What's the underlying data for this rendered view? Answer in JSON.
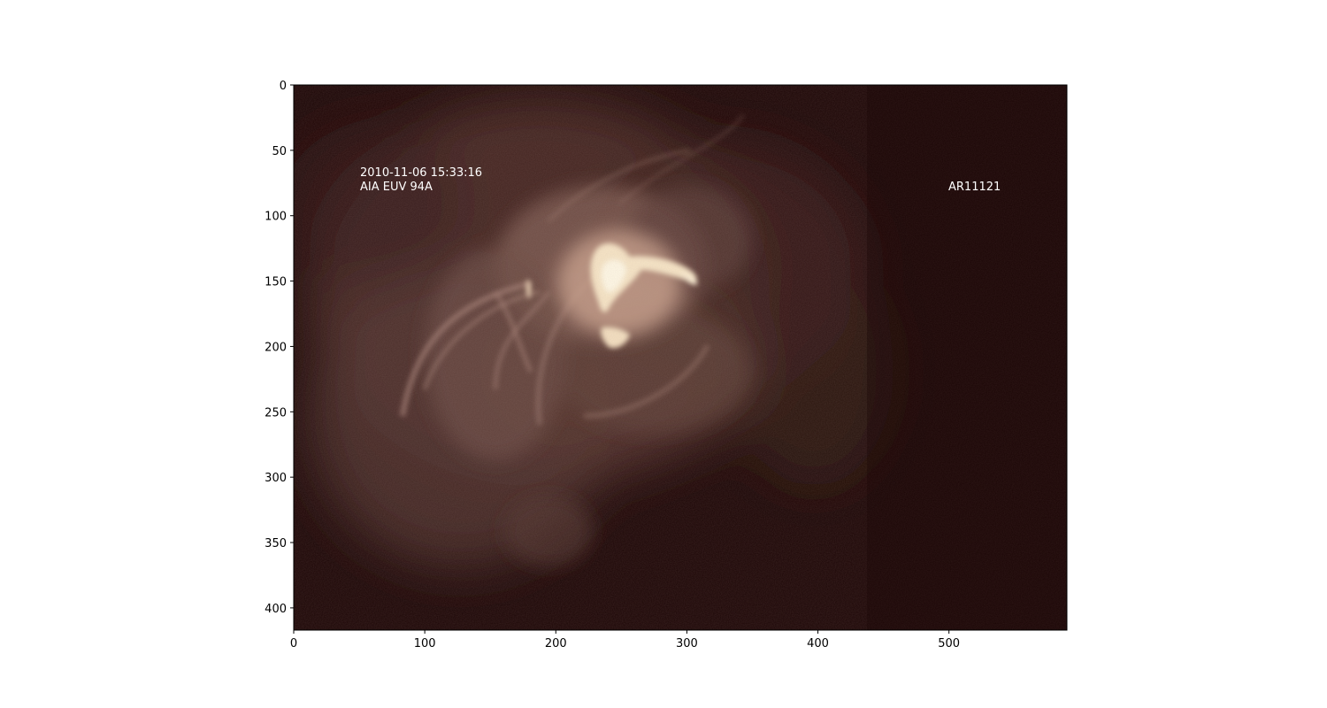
{
  "figure": {
    "annotations": {
      "timestamp": "2010-11-06 15:33:16",
      "instrument": "AIA EUV 94A",
      "region": "AR11121"
    },
    "x_axis": {
      "range": [
        0,
        590
      ],
      "ticks": [
        0,
        100,
        200,
        300,
        400,
        500
      ],
      "tick_labels": [
        "0",
        "100",
        "200",
        "300",
        "400",
        "500"
      ]
    },
    "y_axis": {
      "range": [
        0,
        417
      ],
      "inverted": true,
      "ticks": [
        0,
        50,
        100,
        150,
        200,
        250,
        300,
        350,
        400
      ],
      "tick_labels": [
        "0",
        "50",
        "100",
        "150",
        "200",
        "250",
        "300",
        "350",
        "400"
      ]
    },
    "colors": {
      "background": "#1b0505",
      "haze": "#6a4842",
      "loops": "#a27e73",
      "core": "#fff6d6",
      "annotation_text": "#ffffff",
      "axis": "#000000"
    }
  }
}
